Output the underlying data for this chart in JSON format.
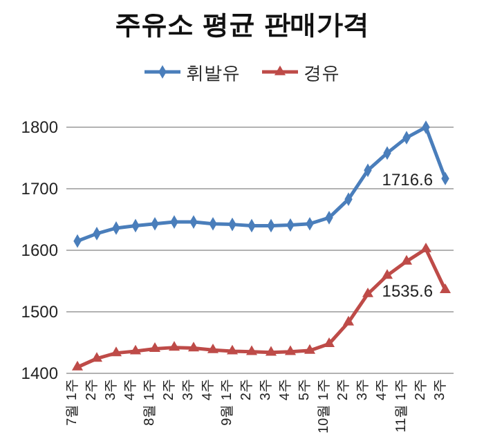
{
  "chart_data": {
    "type": "line",
    "title": "주유소 평균 판매가격",
    "categories": [
      "7월 1주",
      "2주",
      "3주",
      "4주",
      "8월 1주",
      "2주",
      "3주",
      "4주",
      "9월 1주",
      "2주",
      "3주",
      "4주",
      "5주",
      "10월 1주",
      "2주",
      "3주",
      "4주",
      "11월 1주",
      "2주",
      "3주"
    ],
    "series": [
      {
        "name": "휘발유",
        "color": "#4a7ebb",
        "marker": "diamond",
        "values": [
          1615,
          1627,
          1636,
          1640,
          1643,
          1646,
          1646,
          1643,
          1642,
          1640,
          1640,
          1641,
          1643,
          1653,
          1683,
          1730,
          1758,
          1783,
          1800,
          1716.6
        ],
        "value_labels": [
          null,
          null,
          null,
          null,
          null,
          null,
          null,
          null,
          null,
          null,
          null,
          null,
          null,
          null,
          null,
          null,
          null,
          null,
          null,
          "1716.6"
        ]
      },
      {
        "name": "경유",
        "color": "#be4b48",
        "marker": "triangle",
        "values": [
          1410,
          1424,
          1433,
          1436,
          1440,
          1442,
          1441,
          1438,
          1436,
          1435,
          1434,
          1435,
          1437,
          1448,
          1483,
          1529,
          1559,
          1582,
          1602,
          1535.6
        ],
        "value_labels": [
          null,
          null,
          null,
          null,
          null,
          null,
          null,
          null,
          null,
          null,
          null,
          null,
          null,
          null,
          null,
          null,
          null,
          null,
          null,
          "1535.6"
        ]
      }
    ],
    "ylim": [
      1400,
      1800
    ],
    "yticks": [
      1400,
      1500,
      1600,
      1700,
      1800
    ],
    "grid": "y",
    "legend": "top"
  }
}
